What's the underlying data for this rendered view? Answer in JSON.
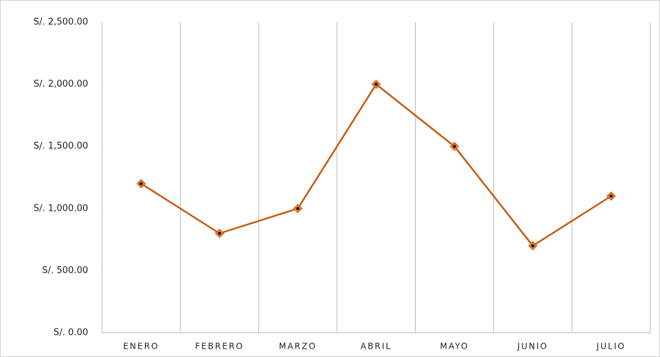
{
  "chart_data": {
    "type": "line",
    "categories": [
      "ENERO",
      "FEBRERO",
      "MARZO",
      "ABRIL",
      "MAYO",
      "JUNIO",
      "JULIO"
    ],
    "series": [
      {
        "color": "#c55a11",
        "marker_color": "#ed7d31",
        "values": [
          1200,
          800,
          1000,
          2000,
          1500,
          700,
          1100
        ]
      }
    ],
    "ylim": [
      0,
      2500
    ],
    "yticks": [
      {
        "value": 0,
        "label": "S/. 0.00"
      },
      {
        "value": 500,
        "label": "S/. 500.00"
      },
      {
        "value": 1000,
        "label": "S/. 1,000.00"
      },
      {
        "value": 1500,
        "label": "S/. 1,500.00"
      },
      {
        "value": 2000,
        "label": "S/. 2,000.00"
      },
      {
        "value": 2500,
        "label": "S/. 2,500.00"
      }
    ],
    "grid": true
  }
}
